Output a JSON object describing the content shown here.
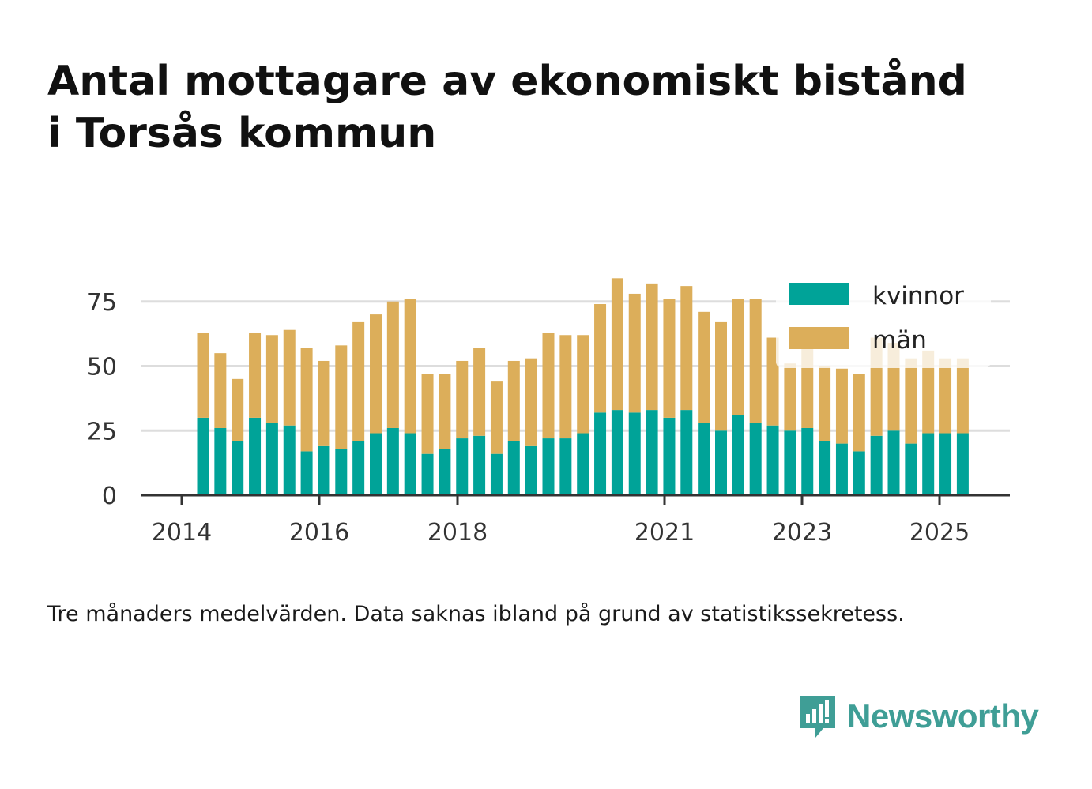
{
  "title_line1": "Antal mottagare av ekonomiskt bistånd",
  "title_line2": "i Torsås kommun",
  "note": "Tre månaders medelvärden. Data saknas ibland på grund av statistikssekretess.",
  "logo": {
    "text": "Newsworthy",
    "icon": "newsworthy-logo-icon",
    "color": "#3f9e96"
  },
  "colors": {
    "kvinnor": "#00a398",
    "man": "#dcae5a",
    "grid": "#dddddd",
    "axis": "#333333"
  },
  "chart_data": {
    "type": "bar",
    "stacked": true,
    "x_ticks": [
      "2014",
      "2016",
      "2018",
      "2021",
      "2023",
      "2025"
    ],
    "y_ticks": [
      "0",
      "25",
      "50",
      "75"
    ],
    "ylim": [
      0,
      90
    ],
    "grid": true,
    "legend_position": "top-right",
    "series": [
      {
        "name": "kvinnor",
        "values": [
          30,
          26,
          21,
          30,
          28,
          27,
          17,
          19,
          18,
          21,
          24,
          26,
          24,
          16,
          18,
          22,
          23,
          16,
          21,
          19,
          22,
          22,
          24,
          32,
          33,
          32,
          33,
          30,
          33,
          28,
          25,
          31,
          28,
          27,
          25,
          26,
          21,
          20,
          17,
          23,
          25,
          20,
          24,
          24,
          24
        ]
      },
      {
        "name": "män",
        "values": [
          33,
          29,
          24,
          33,
          34,
          37,
          40,
          33,
          40,
          46,
          46,
          49,
          52,
          31,
          29,
          30,
          34,
          28,
          31,
          34,
          41,
          40,
          38,
          42,
          51,
          46,
          49,
          46,
          48,
          43,
          42,
          45,
          48,
          34,
          26,
          31,
          29,
          29,
          30,
          38,
          34,
          33,
          32,
          29,
          29
        ]
      }
    ]
  }
}
